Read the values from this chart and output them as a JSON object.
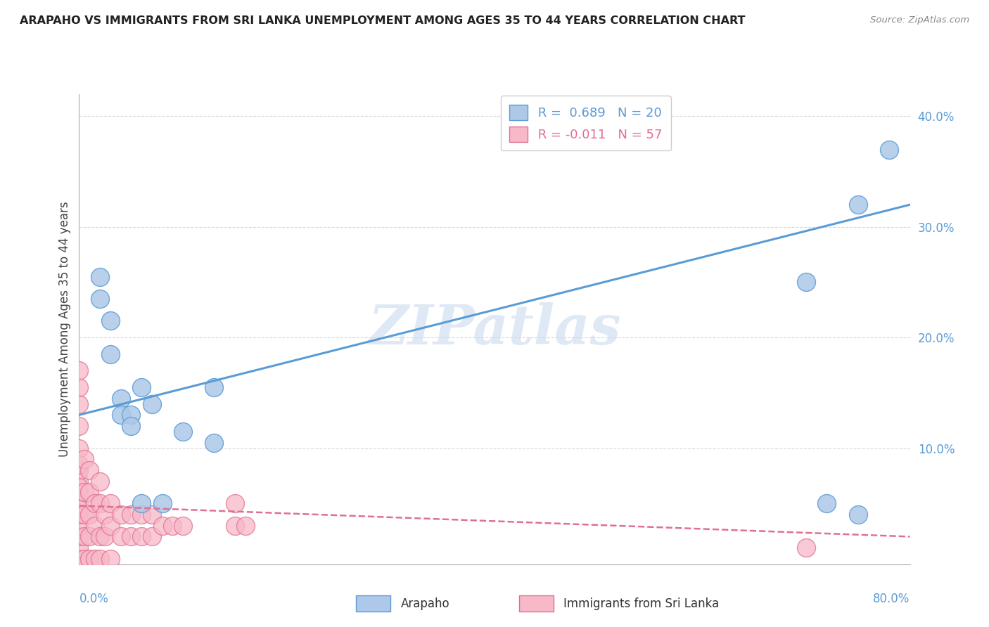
{
  "title": "ARAPAHO VS IMMIGRANTS FROM SRI LANKA UNEMPLOYMENT AMONG AGES 35 TO 44 YEARS CORRELATION CHART",
  "source": "Source: ZipAtlas.com",
  "ylabel": "Unemployment Among Ages 35 to 44 years",
  "xlim": [
    0,
    0.8
  ],
  "ylim": [
    -0.005,
    0.42
  ],
  "yticks": [
    0.1,
    0.2,
    0.3,
    0.4
  ],
  "ytick_labels": [
    "10.0%",
    "20.0%",
    "30.0%",
    "40.0%"
  ],
  "arapaho_R": 0.689,
  "arapaho_N": 20,
  "srilanka_R": -0.011,
  "srilanka_N": 57,
  "arapaho_color": "#adc8e8",
  "arapaho_line_color": "#5b9bd5",
  "arapaho_edge_color": "#5b9bd5",
  "srilanka_color": "#f7b8c8",
  "srilanka_line_color": "#e07090",
  "srilanka_edge_color": "#e07090",
  "watermark": "ZIPatlas",
  "arapaho_scatter_x": [
    0.02,
    0.02,
    0.03,
    0.03,
    0.04,
    0.04,
    0.05,
    0.05,
    0.06,
    0.07,
    0.1,
    0.13,
    0.13,
    0.08,
    0.06,
    0.7,
    0.72,
    0.75,
    0.75,
    0.78
  ],
  "arapaho_scatter_y": [
    0.255,
    0.235,
    0.215,
    0.185,
    0.145,
    0.13,
    0.13,
    0.12,
    0.155,
    0.14,
    0.115,
    0.155,
    0.105,
    0.05,
    0.05,
    0.25,
    0.05,
    0.04,
    0.32,
    0.37
  ],
  "srilanka_scatter_x": [
    0.0,
    0.0,
    0.0,
    0.0,
    0.0,
    0.0,
    0.0,
    0.0,
    0.0,
    0.0,
    0.0,
    0.0,
    0.0,
    0.0,
    0.0,
    0.0,
    0.0,
    0.0,
    0.0,
    0.0,
    0.005,
    0.005,
    0.005,
    0.005,
    0.005,
    0.01,
    0.01,
    0.01,
    0.01,
    0.01,
    0.015,
    0.015,
    0.015,
    0.02,
    0.02,
    0.02,
    0.02,
    0.025,
    0.025,
    0.03,
    0.03,
    0.03,
    0.04,
    0.04,
    0.05,
    0.05,
    0.06,
    0.06,
    0.07,
    0.07,
    0.08,
    0.09,
    0.1,
    0.15,
    0.15,
    0.16,
    0.7
  ],
  "srilanka_scatter_y": [
    0.0,
    0.0,
    0.0,
    0.0,
    0.01,
    0.02,
    0.03,
    0.04,
    0.05,
    0.06,
    0.07,
    0.08,
    0.1,
    0.12,
    0.14,
    0.155,
    0.17,
    0.065,
    0.085,
    0.045,
    0.0,
    0.02,
    0.04,
    0.06,
    0.09,
    0.0,
    0.02,
    0.04,
    0.06,
    0.08,
    0.0,
    0.03,
    0.05,
    0.0,
    0.02,
    0.05,
    0.07,
    0.02,
    0.04,
    0.0,
    0.03,
    0.05,
    0.02,
    0.04,
    0.02,
    0.04,
    0.02,
    0.04,
    0.02,
    0.04,
    0.03,
    0.03,
    0.03,
    0.03,
    0.05,
    0.03,
    0.01
  ],
  "arapaho_line_x0": 0.0,
  "arapaho_line_y0": 0.13,
  "arapaho_line_x1": 0.8,
  "arapaho_line_y1": 0.32,
  "srilanka_line_x0": 0.0,
  "srilanka_line_y0": 0.048,
  "srilanka_line_x1": 0.8,
  "srilanka_line_y1": 0.02,
  "background_color": "#ffffff",
  "grid_color": "#d8d8d8"
}
